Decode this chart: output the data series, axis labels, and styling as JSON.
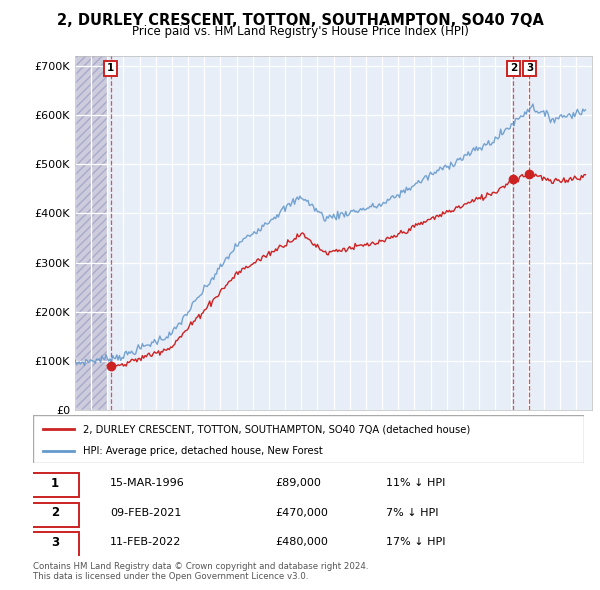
{
  "title": "2, DURLEY CRESCENT, TOTTON, SOUTHAMPTON, SO40 7QA",
  "subtitle": "Price paid vs. HM Land Registry's House Price Index (HPI)",
  "red_label": "2, DURLEY CRESCENT, TOTTON, SOUTHAMPTON, SO40 7QA (detached house)",
  "blue_label": "HPI: Average price, detached house, New Forest",
  "t1_x": 1996.21,
  "t1_y": 89000,
  "t2_x": 2021.12,
  "t2_y": 470000,
  "t3_x": 2022.12,
  "t3_y": 480000,
  "footnote": "Contains HM Land Registry data © Crown copyright and database right 2024.\nThis data is licensed under the Open Government Licence v3.0.",
  "ylim": [
    0,
    720000
  ],
  "xlim_start": 1994.0,
  "xlim_end": 2026.0,
  "yticks": [
    0,
    100000,
    200000,
    300000,
    400000,
    500000,
    600000,
    700000
  ],
  "ytick_labels": [
    "£0",
    "£100K",
    "£200K",
    "£300K",
    "£400K",
    "£500K",
    "£600K",
    "£700K"
  ],
  "xticks": [
    1994,
    1995,
    1996,
    1997,
    1998,
    1999,
    2000,
    2001,
    2002,
    2003,
    2004,
    2005,
    2006,
    2007,
    2008,
    2009,
    2010,
    2011,
    2012,
    2013,
    2014,
    2015,
    2016,
    2017,
    2018,
    2019,
    2020,
    2021,
    2022,
    2023,
    2024,
    2025
  ],
  "plot_bg_color": "#e8eef8",
  "red_color": "#cc2222",
  "blue_color": "#6699cc",
  "hatch_region_end": 1996.0,
  "row_data": [
    [
      1,
      "15-MAR-1996",
      "£89,000",
      "11% ↓ HPI"
    ],
    [
      2,
      "09-FEB-2021",
      "£470,000",
      "7% ↓ HPI"
    ],
    [
      3,
      "11-FEB-2022",
      "£480,000",
      "17% ↓ HPI"
    ]
  ]
}
